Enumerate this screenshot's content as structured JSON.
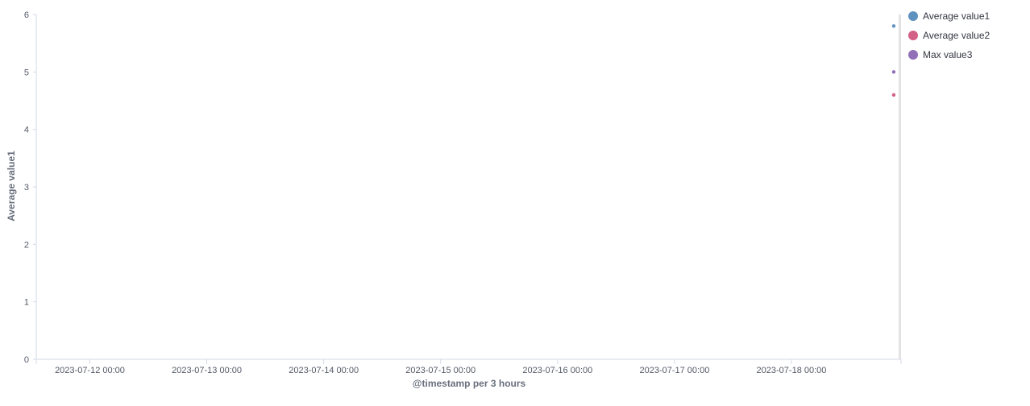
{
  "chart_data": {
    "type": "scatter",
    "title": "",
    "xlabel": "@timestamp per 3 hours",
    "ylabel": "Average value1",
    "ylim": [
      0,
      6
    ],
    "yticks": [
      0,
      1,
      2,
      3,
      4,
      5,
      6
    ],
    "xlim": [
      "2023-07-11 13:00",
      "2023-07-18 22:30"
    ],
    "xticks": [
      "2023-07-12 00:00",
      "2023-07-13 00:00",
      "2023-07-14 00:00",
      "2023-07-15 00:00",
      "2023-07-16 00:00",
      "2023-07-17 00:00",
      "2023-07-18 00:00"
    ],
    "grid": false,
    "legend_position": "top-right",
    "current_time_marker": "2023-07-18 22:00",
    "series": [
      {
        "name": "Average value1",
        "color": "#6092c0",
        "points": [
          {
            "x": "2023-07-18 21:00",
            "y": 5.8
          }
        ]
      },
      {
        "name": "Average value2",
        "color": "#d36086",
        "points": [
          {
            "x": "2023-07-18 21:00",
            "y": 4.6
          }
        ]
      },
      {
        "name": "Max value3",
        "color": "#9170b8",
        "points": [
          {
            "x": "2023-07-18 21:00",
            "y": 5.0
          }
        ]
      }
    ]
  }
}
